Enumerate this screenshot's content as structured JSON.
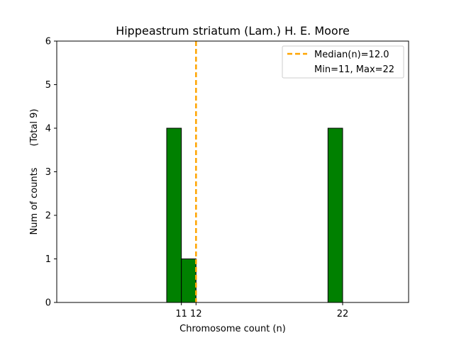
{
  "chart_data": {
    "type": "bar",
    "title": "Hippeastrum striatum (Lam.) H. E. Moore",
    "xlabel": "Chromosome count (n)",
    "ylabel_main": "Num of counts",
    "ylabel_total": "(Total 9)",
    "categories": [
      11,
      12,
      22
    ],
    "values": [
      4,
      1,
      4
    ],
    "bar_color": "#008000",
    "bar_edge_color": "#000000",
    "xlim": [
      2.5,
      26.5
    ],
    "ylim": [
      0,
      6
    ],
    "xticks": [
      11,
      12,
      22
    ],
    "yticks": [
      0,
      1,
      2,
      3,
      4,
      5,
      6
    ],
    "median": 12.0,
    "median_color": "#FFA500",
    "legend": {
      "position": "upper right",
      "median_label": "Median(n)=12.0",
      "range_label": "Min=11, Max=22"
    },
    "grid": false
  }
}
